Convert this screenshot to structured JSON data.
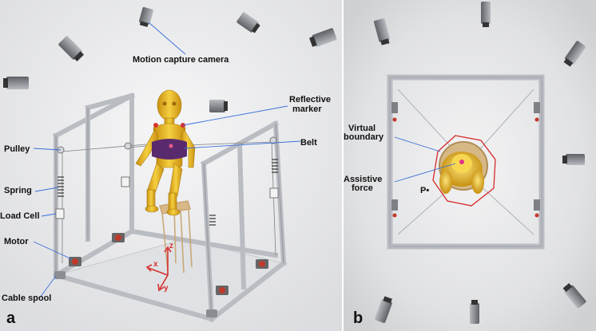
{
  "panel_a": {
    "letter": "a",
    "labels": {
      "camera": "Motion capture camera",
      "reflective_1": "Reflective",
      "reflective_2": "marker",
      "belt": "Belt",
      "pulley": "Pulley",
      "spring": "Spring",
      "load_cell": "Load Cell",
      "motor": "Motor",
      "cable_spool": "Cable spool"
    },
    "axes": {
      "x": "x",
      "y": "y",
      "z": "z"
    }
  },
  "panel_b": {
    "letter": "b",
    "labels": {
      "virtual_1": "Virtual",
      "virtual_2": "boundary",
      "assistive_1": "Assistive",
      "assistive_2": "force",
      "point": "P•"
    }
  },
  "colors": {
    "frame": "#c9ccd0",
    "mannequin": "#e6b422",
    "belt": "#5a2a6e",
    "boundary": "#d62a2a",
    "leader": "#3a6fd8",
    "axis": "#d63030",
    "motor": "#c0392b"
  }
}
